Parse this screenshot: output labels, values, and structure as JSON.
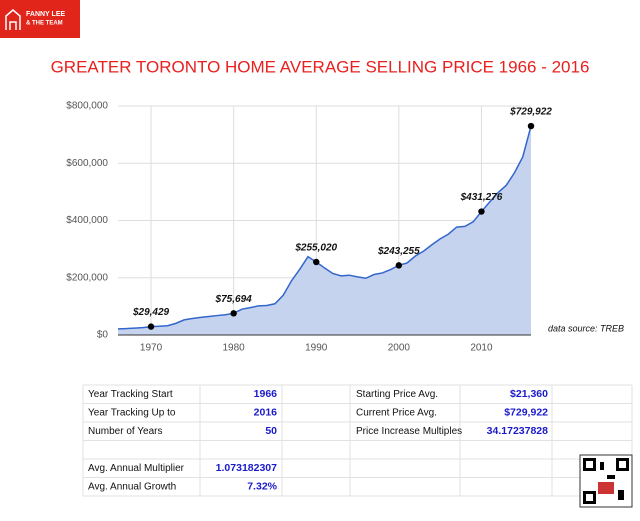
{
  "logo": {
    "name": "FANNY LEE",
    "team": "& THE TEAM"
  },
  "chart_data": {
    "type": "area",
    "title": "GREATER TORONTO HOME AVERAGE SELLING PRICE 1966 - 2016",
    "annotation": "data source: TREB",
    "x": [
      1966,
      1967,
      1968,
      1969,
      1970,
      1971,
      1972,
      1973,
      1974,
      1975,
      1976,
      1977,
      1978,
      1979,
      1980,
      1981,
      1982,
      1983,
      1984,
      1985,
      1986,
      1987,
      1988,
      1989,
      1990,
      1991,
      1992,
      1993,
      1994,
      1995,
      1996,
      1997,
      1998,
      1999,
      2000,
      2001,
      2002,
      2003,
      2004,
      2005,
      2006,
      2007,
      2008,
      2009,
      2010,
      2011,
      2012,
      2013,
      2014,
      2015,
      2016
    ],
    "values": [
      21360,
      22400,
      24000,
      25800,
      29429,
      30400,
      32500,
      40600,
      52800,
      57600,
      61400,
      64600,
      67900,
      70800,
      75694,
      90200,
      95500,
      101600,
      102900,
      109100,
      138900,
      189100,
      229600,
      273700,
      255020,
      234300,
      214900,
      206500,
      208900,
      203000,
      198200,
      211300,
      216800,
      228400,
      243255,
      251500,
      275900,
      293100,
      315200,
      335900,
      352400,
      377000,
      379300,
      395500,
      431276,
      464800,
      497100,
      522900,
      566700,
      622100,
      729922
    ],
    "value_labels": [
      null,
      null,
      null,
      null,
      "$29,429",
      null,
      null,
      null,
      null,
      null,
      null,
      null,
      null,
      null,
      "$75,694",
      null,
      null,
      null,
      null,
      null,
      null,
      null,
      null,
      null,
      "$255,020",
      null,
      null,
      null,
      null,
      null,
      null,
      null,
      null,
      null,
      "$243,255",
      null,
      null,
      null,
      null,
      null,
      null,
      null,
      null,
      null,
      "$431,276",
      null,
      null,
      null,
      null,
      null,
      "$729,922"
    ],
    "color": "#3366cc",
    "fill": "#c5d3ef",
    "xlim": [
      1966,
      2016
    ],
    "xticks": [
      1970,
      1980,
      1990,
      2000,
      2010
    ],
    "ylim": [
      0,
      800000
    ],
    "yticks": [
      {
        "value": 0,
        "label": "$0"
      },
      {
        "value": 200000,
        "label": "$200,000"
      },
      {
        "value": 400000,
        "label": "$400,000"
      },
      {
        "value": 600000,
        "label": "$600,000"
      },
      {
        "value": 800000,
        "label": "$800,000"
      }
    ],
    "grid": true
  },
  "table": {
    "left": [
      {
        "label": "Year Tracking Start",
        "value": "1966"
      },
      {
        "label": "Year Tracking Up to",
        "value": "2016"
      },
      {
        "label": "Number of Years",
        "value": "50"
      },
      {
        "label": "Avg. Annual Multiplier",
        "value": "1.073182307"
      },
      {
        "label": "Avg. Annual Growth",
        "value": "7.32%"
      }
    ],
    "right": [
      {
        "label": "Starting Price Avg.",
        "value": "$21,360"
      },
      {
        "label": "Current Price Avg.",
        "value": "$729,922"
      },
      {
        "label": "Price Increase Multiples",
        "value": "34.17237828"
      }
    ]
  }
}
